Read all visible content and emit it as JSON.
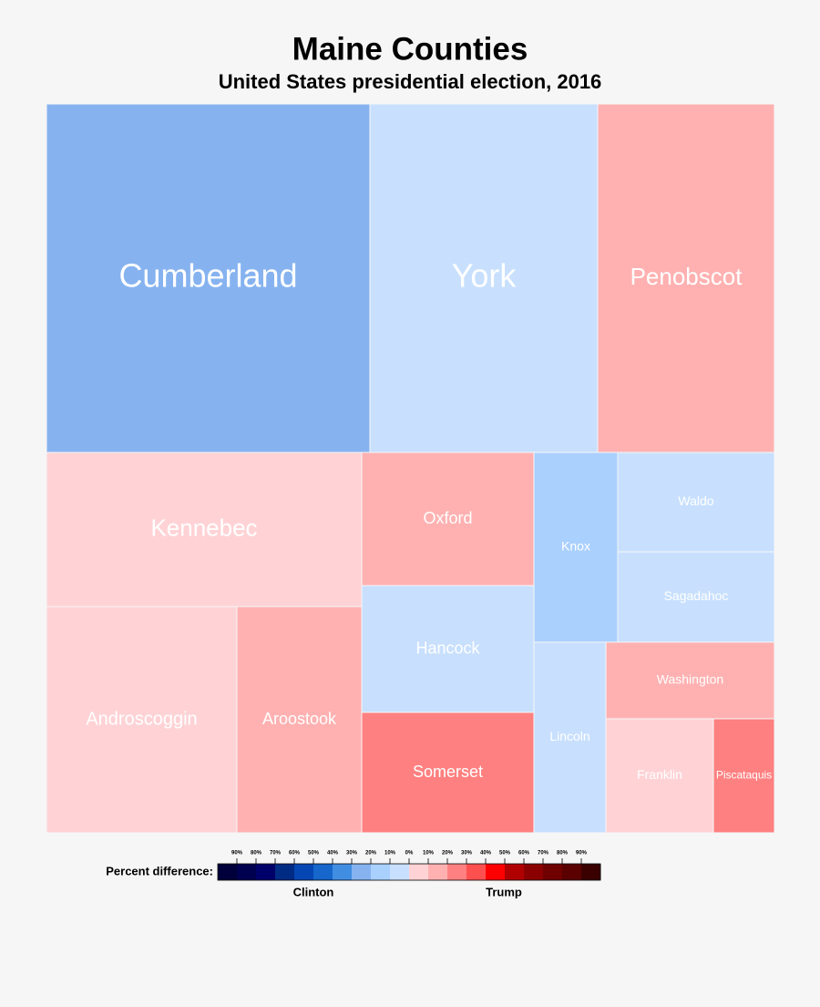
{
  "header": {
    "title": "Maine Counties",
    "subtitle": "United States presidential election, 2016"
  },
  "nodes": [
    {
      "label": "Cumberland",
      "color": "#86b3f0"
    },
    {
      "label": "York",
      "color": "#c8e0fe"
    },
    {
      "label": "Penobscot",
      "color": "#ffb1b1"
    },
    {
      "label": "Kennebec",
      "color": "#ffd3d6"
    },
    {
      "label": "Androscoggin",
      "color": "#ffd3d6"
    },
    {
      "label": "Aroostook",
      "color": "#ffb1b1"
    },
    {
      "label": "Oxford",
      "color": "#ffb1b1"
    },
    {
      "label": "Hancock",
      "color": "#c8e0fe"
    },
    {
      "label": "Somerset",
      "color": "#ff8080"
    },
    {
      "label": "Knox",
      "color": "#aad0fe"
    },
    {
      "label": "Waldo",
      "color": "#c8e0fe"
    },
    {
      "label": "Sagadahoc",
      "color": "#c8e0fe"
    },
    {
      "label": "Lincoln",
      "color": "#c8e0fe"
    },
    {
      "label": "Washington",
      "color": "#ffb1b1"
    },
    {
      "label": "Franklin",
      "color": "#ffd3d6"
    },
    {
      "label": "Piscataquis",
      "color": "#ff8080"
    }
  ],
  "legend": {
    "title": "Percent difference:",
    "ticks": [
      "90%",
      "80%",
      "70%",
      "60%",
      "50%",
      "40%",
      "30%",
      "20%",
      "10%",
      "0%",
      "10%",
      "20%",
      "30%",
      "40%",
      "50%",
      "60%",
      "70%",
      "80%",
      "90%"
    ],
    "colors": [
      "#00003a",
      "#000050",
      "#00006a",
      "#002b84",
      "#0645b4",
      "#1666cb",
      "#418de2",
      "#86b3f0",
      "#aad0fe",
      "#c8e0fe",
      "#ffd3d6",
      "#ffb1b1",
      "#ff8080",
      "#ff5050",
      "#ff0000",
      "#b00000",
      "#8a0000",
      "#700000",
      "#5a0000",
      "#3a0000"
    ],
    "left_label": "Clinton",
    "right_label": "Trump"
  }
}
